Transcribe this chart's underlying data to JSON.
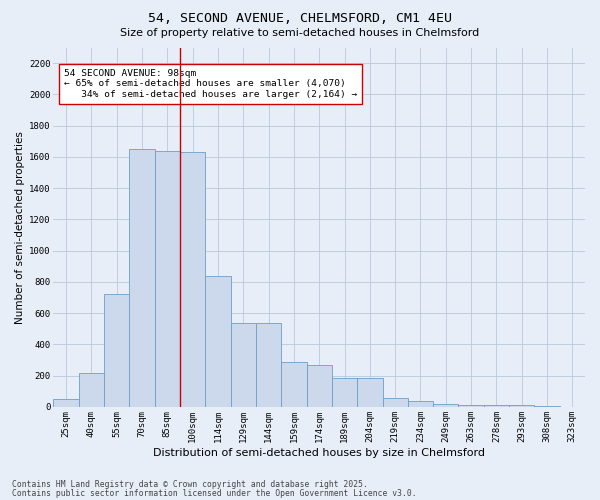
{
  "title1": "54, SECOND AVENUE, CHELMSFORD, CM1 4EU",
  "title2": "Size of property relative to semi-detached houses in Chelmsford",
  "xlabel": "Distribution of semi-detached houses by size in Chelmsford",
  "ylabel": "Number of semi-detached properties",
  "categories": [
    "25sqm",
    "40sqm",
    "55sqm",
    "70sqm",
    "85sqm",
    "100sqm",
    "114sqm",
    "129sqm",
    "144sqm",
    "159sqm",
    "174sqm",
    "189sqm",
    "204sqm",
    "219sqm",
    "234sqm",
    "249sqm",
    "263sqm",
    "278sqm",
    "293sqm",
    "308sqm",
    "323sqm"
  ],
  "values": [
    50,
    220,
    720,
    1650,
    1640,
    1630,
    840,
    540,
    540,
    290,
    270,
    185,
    185,
    55,
    40,
    20,
    15,
    10,
    10,
    5,
    0
  ],
  "bar_color": "#ccd9ed",
  "bar_edge_color": "#6a9fc8",
  "bar_edge_width": 0.6,
  "grid_color": "#b8c8dc",
  "background_color": "#e8eef8",
  "vline_color": "#cc0000",
  "vline_x_index": 4.5,
  "annotation_text": "54 SECOND AVENUE: 98sqm\n← 65% of semi-detached houses are smaller (4,070)\n   34% of semi-detached houses are larger (2,164) →",
  "annotation_box_color": "white",
  "annotation_box_edge": "#cc0000",
  "ylim": [
    0,
    2300
  ],
  "yticks": [
    0,
    200,
    400,
    600,
    800,
    1000,
    1200,
    1400,
    1600,
    1800,
    2000,
    2200
  ],
  "footer1": "Contains HM Land Registry data © Crown copyright and database right 2025.",
  "footer2": "Contains public sector information licensed under the Open Government Licence v3.0.",
  "title1_fontsize": 9.5,
  "title2_fontsize": 8,
  "xlabel_fontsize": 8,
  "ylabel_fontsize": 7.5,
  "tick_fontsize": 6.5,
  "annotation_fontsize": 6.8,
  "footer_fontsize": 5.8
}
